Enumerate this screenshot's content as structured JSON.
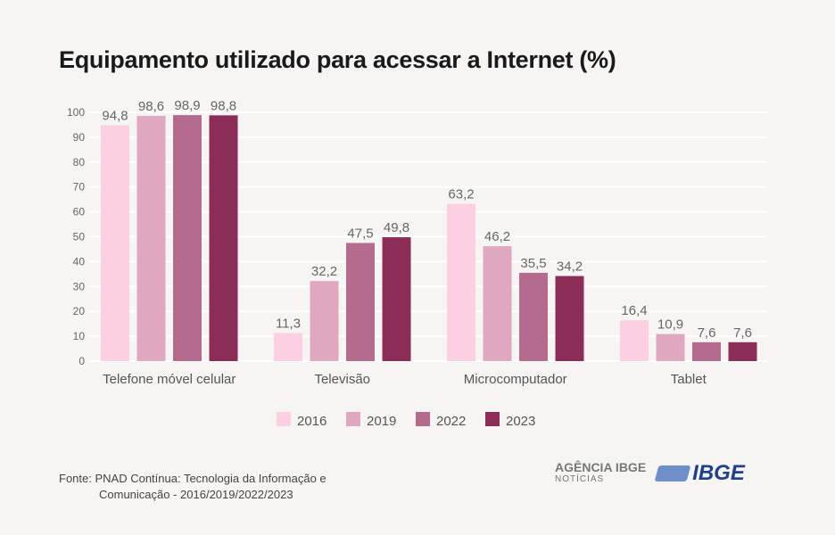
{
  "chart_data": {
    "type": "bar",
    "title": "Equipamento utilizado para acessar a Internet (%)",
    "categories": [
      "Telefone móvel celular",
      "Televisão",
      "Microcomputador",
      "Tablet"
    ],
    "series": [
      {
        "name": "2016",
        "color": "#fcd0e2",
        "values": [
          94.8,
          11.3,
          63.2,
          16.4
        ],
        "labels": [
          "94,8",
          "11,3",
          "63,2",
          "16,4"
        ]
      },
      {
        "name": "2019",
        "color": "#e0a7c1",
        "values": [
          98.6,
          32.2,
          46.2,
          10.9
        ],
        "labels": [
          "98,6",
          "32,2",
          "46,2",
          "10,9"
        ]
      },
      {
        "name": "2022",
        "color": "#b56b8e",
        "values": [
          98.9,
          47.5,
          35.5,
          7.6
        ],
        "labels": [
          "98,9",
          "47,5",
          "35,5",
          "7,6"
        ]
      },
      {
        "name": "2023",
        "color": "#8c2d58",
        "values": [
          98.8,
          49.8,
          34.2,
          7.6
        ],
        "labels": [
          "98,8",
          "49,8",
          "34,2",
          "7,6"
        ]
      }
    ],
    "ylim": [
      0,
      100
    ],
    "yticks": [
      "0",
      "10",
      "20",
      "30",
      "40",
      "50",
      "60",
      "70",
      "80",
      "90",
      "100"
    ],
    "grid": true,
    "legend": "bottom"
  },
  "source": {
    "line1": "Fonte: PNAD Contínua: Tecnologia da Informação e",
    "line2": "Comunicação - 2016/2019/2022/2023"
  },
  "logos": {
    "agencia": "AGÊNCIA IBGE",
    "noticias": "NOTÍCIAS",
    "ibge": "IBGE"
  }
}
